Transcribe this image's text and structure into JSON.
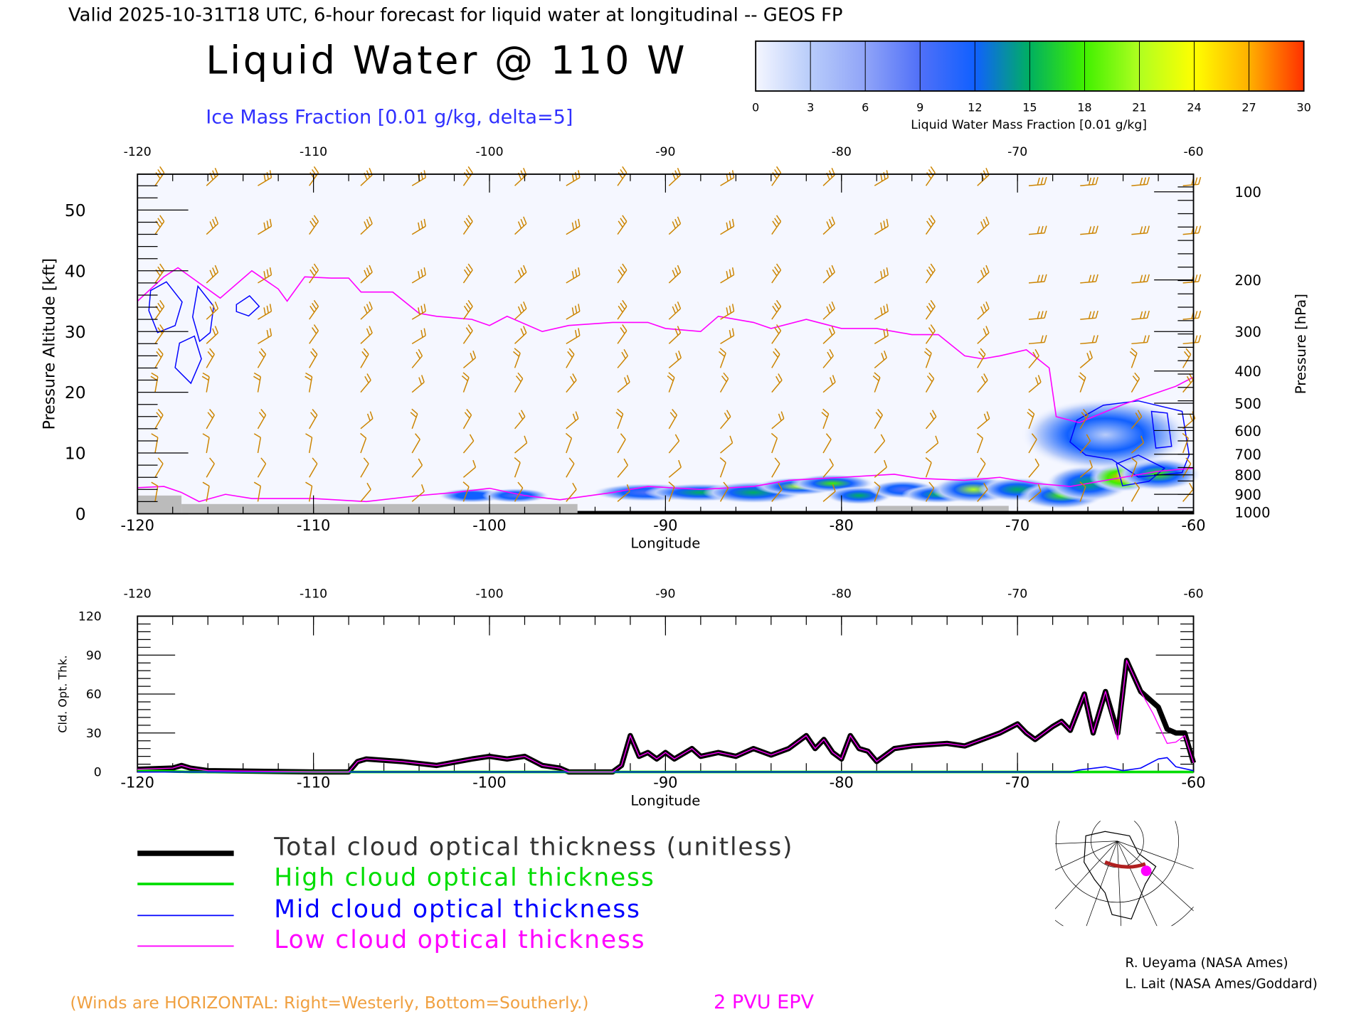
{
  "header": {
    "valid_line": "Valid 2025-10-31T18 UTC, 6-hour forecast for liquid water at longitudinal -- GEOS FP",
    "title": "Liquid Water @ 110 W",
    "ice_label": "Ice Mass Fraction [0.01 g/kg, delta=5]"
  },
  "colorbar": {
    "label": "Liquid Water Mass Fraction [0.01 g/kg]",
    "ticks": [
      "0",
      "3",
      "6",
      "9",
      "12",
      "15",
      "18",
      "21",
      "24",
      "27",
      "30"
    ],
    "colors": [
      "#f4f6ff",
      "#b8ccfa",
      "#90a4f8",
      "#5070f8",
      "#1060ff",
      "#00b060",
      "#40f000",
      "#b0ff20",
      "#ffff00",
      "#ffb000",
      "#ff3000"
    ]
  },
  "chart_data": [
    {
      "type": "heatmap",
      "title": "Liquid Water @ 110 W",
      "xlabel": "Longitude",
      "ylabel": "Pressure Altitude [kft]",
      "y2label": "Pressure [hPa]",
      "xlim": [
        -120,
        -60
      ],
      "ylim": [
        0,
        56
      ],
      "x_ticks": [
        "-120",
        "-110",
        "-100",
        "-90",
        "-80",
        "-70",
        "-60"
      ],
      "y_ticks": [
        "0",
        "10",
        "20",
        "30",
        "40",
        "50"
      ],
      "pressure_ticks": [
        "100",
        "200",
        "300",
        "400",
        "500",
        "600",
        "700",
        "800",
        "900",
        "1000"
      ],
      "pressure_tick_kft": [
        53,
        38.5,
        30,
        23.5,
        18.2,
        13.7,
        9.8,
        6.4,
        3.2,
        0.3
      ],
      "epv_2pvu_kft": [
        [
          -120,
          35
        ],
        [
          -118.5,
          39
        ],
        [
          -117.7,
          40.5
        ],
        [
          -116.5,
          38
        ],
        [
          -115.3,
          35.5
        ],
        [
          -113.5,
          40
        ],
        [
          -112,
          37
        ],
        [
          -111.5,
          35
        ],
        [
          -110.5,
          39
        ],
        [
          -109,
          38.8
        ],
        [
          -108,
          38.8
        ],
        [
          -107.3,
          36.5
        ],
        [
          -105.5,
          36.5
        ],
        [
          -104,
          33
        ],
        [
          -103,
          32.5
        ],
        [
          -101,
          32
        ],
        [
          -100,
          31
        ],
        [
          -99,
          32.5
        ],
        [
          -97,
          30
        ],
        [
          -95.5,
          31
        ],
        [
          -93,
          31.5
        ],
        [
          -91,
          31.5
        ],
        [
          -90,
          30.5
        ],
        [
          -88,
          30
        ],
        [
          -87,
          32.5
        ],
        [
          -85,
          31.5
        ],
        [
          -84,
          30.5
        ],
        [
          -82,
          32
        ],
        [
          -80,
          30.5
        ],
        [
          -78,
          30.5
        ],
        [
          -76,
          29.5
        ],
        [
          -74.5,
          29.5
        ],
        [
          -73,
          26
        ],
        [
          -72,
          25.5
        ],
        [
          -71,
          26
        ],
        [
          -69.5,
          27
        ],
        [
          -68.2,
          24
        ],
        [
          -67.8,
          16
        ],
        [
          -66.5,
          15
        ],
        [
          -64,
          18
        ],
        [
          -61,
          21
        ],
        [
          -60,
          22.5
        ]
      ],
      "epv_2pvu_low_kft": [
        [
          -120,
          4.3
        ],
        [
          -118.5,
          4.5
        ],
        [
          -117.5,
          3.5
        ],
        [
          -116.5,
          2
        ],
        [
          -115,
          3.2
        ],
        [
          -113.5,
          2.5
        ],
        [
          -110,
          2.5
        ],
        [
          -107,
          2
        ],
        [
          -104,
          3
        ],
        [
          -102,
          3.5
        ],
        [
          -100,
          4.2
        ],
        [
          -98,
          3
        ],
        [
          -96,
          2.3
        ],
        [
          -93,
          3.5
        ],
        [
          -91,
          4.5
        ],
        [
          -88,
          4
        ],
        [
          -85,
          4.5
        ],
        [
          -83,
          5.5
        ],
        [
          -80,
          6
        ],
        [
          -77,
          6.5
        ],
        [
          -75.5,
          5.8
        ],
        [
          -73,
          5.5
        ],
        [
          -71,
          6
        ],
        [
          -69,
          5
        ],
        [
          -67,
          4.5
        ],
        [
          -64,
          6
        ],
        [
          -62,
          7
        ],
        [
          -60,
          7.5
        ]
      ],
      "liquid_water_blobs": [
        [
          -101,
          3,
          1.2,
          0.8,
          12
        ],
        [
          -98.5,
          3,
          1.2,
          0.8,
          9
        ],
        [
          -91,
          3.5,
          2,
          1,
          10
        ],
        [
          -88,
          3.5,
          2,
          1,
          14
        ],
        [
          -85,
          3.5,
          1.8,
          1.2,
          16
        ],
        [
          -82.5,
          4.5,
          1.5,
          1,
          20
        ],
        [
          -80.5,
          5,
          1.5,
          1,
          17
        ],
        [
          -79,
          3,
          1.2,
          1,
          14
        ],
        [
          -76.5,
          4,
          1.2,
          1,
          10
        ],
        [
          -74.5,
          3.2,
          1.3,
          1,
          16
        ],
        [
          -72.5,
          4,
          1.5,
          1.5,
          20
        ],
        [
          -70,
          4,
          1.4,
          1.3,
          14
        ],
        [
          -67.5,
          3,
          1.5,
          1.5,
          18
        ],
        [
          -66,
          5,
          1.5,
          2,
          14
        ],
        [
          -64,
          6,
          1.2,
          1.6,
          27
        ],
        [
          -62,
          6.5,
          1.5,
          1.8,
          18
        ],
        [
          -65,
          13,
          3,
          4,
          4
        ]
      ],
      "legend": [
        "2 PVU EPV"
      ],
      "note": "(Winds are HORIZONTAL: Right=Westerly, Bottom=Southerly.)"
    },
    {
      "type": "line",
      "xlabel": "Longitude",
      "ylabel": "Cld. Opt. Thk.",
      "xlim": [
        -120,
        -60
      ],
      "ylim": [
        0,
        120
      ],
      "x_ticks": [
        "-120",
        "-110",
        "-100",
        "-90",
        "-80",
        "-70",
        "-60"
      ],
      "y_ticks": [
        "0",
        "30",
        "60",
        "90",
        "120"
      ],
      "series": [
        {
          "name": "Total cloud optical thickness (unitless)",
          "color": "#000000",
          "points": [
            [
              -120,
              2
            ],
            [
              -118,
              3
            ],
            [
              -117.5,
              5
            ],
            [
              -117,
              3
            ],
            [
              -116,
              1
            ],
            [
              -110,
              0
            ],
            [
              -108,
              0
            ],
            [
              -107.5,
              8
            ],
            [
              -107,
              10
            ],
            [
              -105,
              8
            ],
            [
              -103,
              5
            ],
            [
              -101,
              10
            ],
            [
              -100,
              12
            ],
            [
              -99,
              10
            ],
            [
              -98,
              12
            ],
            [
              -97,
              5
            ],
            [
              -96,
              3
            ],
            [
              -95.5,
              0
            ],
            [
              -93,
              0
            ],
            [
              -92.5,
              5
            ],
            [
              -92,
              28
            ],
            [
              -91.5,
              12
            ],
            [
              -91,
              15
            ],
            [
              -90.5,
              10
            ],
            [
              -90,
              15
            ],
            [
              -89.5,
              10
            ],
            [
              -88.5,
              18
            ],
            [
              -88,
              12
            ],
            [
              -87,
              15
            ],
            [
              -86,
              12
            ],
            [
              -85,
              18
            ],
            [
              -84,
              13
            ],
            [
              -83,
              18
            ],
            [
              -82,
              28
            ],
            [
              -81.5,
              18
            ],
            [
              -81,
              25
            ],
            [
              -80.5,
              15
            ],
            [
              -80,
              10
            ],
            [
              -79.5,
              28
            ],
            [
              -79,
              18
            ],
            [
              -78.5,
              16
            ],
            [
              -78,
              8
            ],
            [
              -77,
              18
            ],
            [
              -76,
              20
            ],
            [
              -74,
              22
            ],
            [
              -73,
              20
            ],
            [
              -72,
              25
            ],
            [
              -71,
              30
            ],
            [
              -70,
              37
            ],
            [
              -69.5,
              30
            ],
            [
              -69,
              25
            ],
            [
              -68,
              35
            ],
            [
              -67.5,
              39
            ],
            [
              -67,
              32
            ],
            [
              -66.2,
              60
            ],
            [
              -65.7,
              30
            ],
            [
              -65,
              62
            ],
            [
              -64.3,
              30
            ],
            [
              -63.8,
              86
            ],
            [
              -63,
              62
            ],
            [
              -62,
              50
            ],
            [
              -61.5,
              33
            ],
            [
              -61,
              30
            ],
            [
              -60.5,
              30
            ],
            [
              -60,
              7
            ]
          ]
        },
        {
          "name": "High cloud optical thickness",
          "color": "#00dd00",
          "points": [
            [
              -120,
              1
            ],
            [
              -117,
              0
            ],
            [
              -60,
              0
            ]
          ]
        },
        {
          "name": "Mid cloud optical thickness",
          "color": "#0000ff",
          "points": [
            [
              -120,
              0
            ],
            [
              -67,
              0
            ],
            [
              -66.5,
              1.5
            ],
            [
              -65,
              4
            ],
            [
              -64,
              1
            ],
            [
              -63,
              3
            ],
            [
              -62,
              10
            ],
            [
              -61.5,
              11
            ],
            [
              -61,
              4
            ],
            [
              -60,
              1
            ]
          ]
        },
        {
          "name": "Low cloud optical thickness",
          "color": "#ff00ff",
          "points": [
            [
              -120,
              2
            ],
            [
              -118,
              3
            ],
            [
              -117.5,
              5
            ],
            [
              -117,
              3
            ],
            [
              -116,
              1
            ],
            [
              -110,
              0
            ],
            [
              -108,
              0
            ],
            [
              -107.5,
              8
            ],
            [
              -107,
              10
            ],
            [
              -105,
              8
            ],
            [
              -103,
              5
            ],
            [
              -101,
              10
            ],
            [
              -100,
              12
            ],
            [
              -99,
              10
            ],
            [
              -98,
              12
            ],
            [
              -97,
              5
            ],
            [
              -96,
              3
            ],
            [
              -95.5,
              0
            ],
            [
              -93,
              0
            ],
            [
              -92.5,
              5
            ],
            [
              -92,
              28
            ],
            [
              -91.5,
              12
            ],
            [
              -91,
              15
            ],
            [
              -90.5,
              10
            ],
            [
              -90,
              15
            ],
            [
              -89.5,
              10
            ],
            [
              -88.5,
              18
            ],
            [
              -88,
              12
            ],
            [
              -87,
              15
            ],
            [
              -86,
              12
            ],
            [
              -85,
              18
            ],
            [
              -84,
              13
            ],
            [
              -83,
              18
            ],
            [
              -82,
              28
            ],
            [
              -81.5,
              18
            ],
            [
              -81,
              25
            ],
            [
              -80.5,
              15
            ],
            [
              -80,
              10
            ],
            [
              -79.5,
              28
            ],
            [
              -79,
              18
            ],
            [
              -78.5,
              16
            ],
            [
              -78,
              8
            ],
            [
              -77,
              18
            ],
            [
              -76,
              20
            ],
            [
              -74,
              22
            ],
            [
              -73,
              20
            ],
            [
              -72,
              25
            ],
            [
              -71,
              30
            ],
            [
              -70,
              37
            ],
            [
              -69.5,
              30
            ],
            [
              -69,
              25
            ],
            [
              -68,
              35
            ],
            [
              -67.5,
              39
            ],
            [
              -67,
              32
            ],
            [
              -66.2,
              60
            ],
            [
              -65.7,
              30
            ],
            [
              -65,
              62
            ],
            [
              -64.3,
              25
            ],
            [
              -63.8,
              86
            ],
            [
              -63,
              62
            ],
            [
              -62.3,
              45
            ],
            [
              -61.5,
              22
            ],
            [
              -61,
              23
            ],
            [
              -60.5,
              28
            ],
            [
              -60,
              7
            ]
          ]
        }
      ]
    }
  ],
  "credits": [
    "R. Ueyama (NASA Ames)",
    "L. Lait (NASA Ames/Goddard)"
  ],
  "colors": {
    "wind": "#cc8400",
    "epv": "#ff00ff",
    "ice": "#0000ff",
    "ground": "#bbbbbb"
  }
}
